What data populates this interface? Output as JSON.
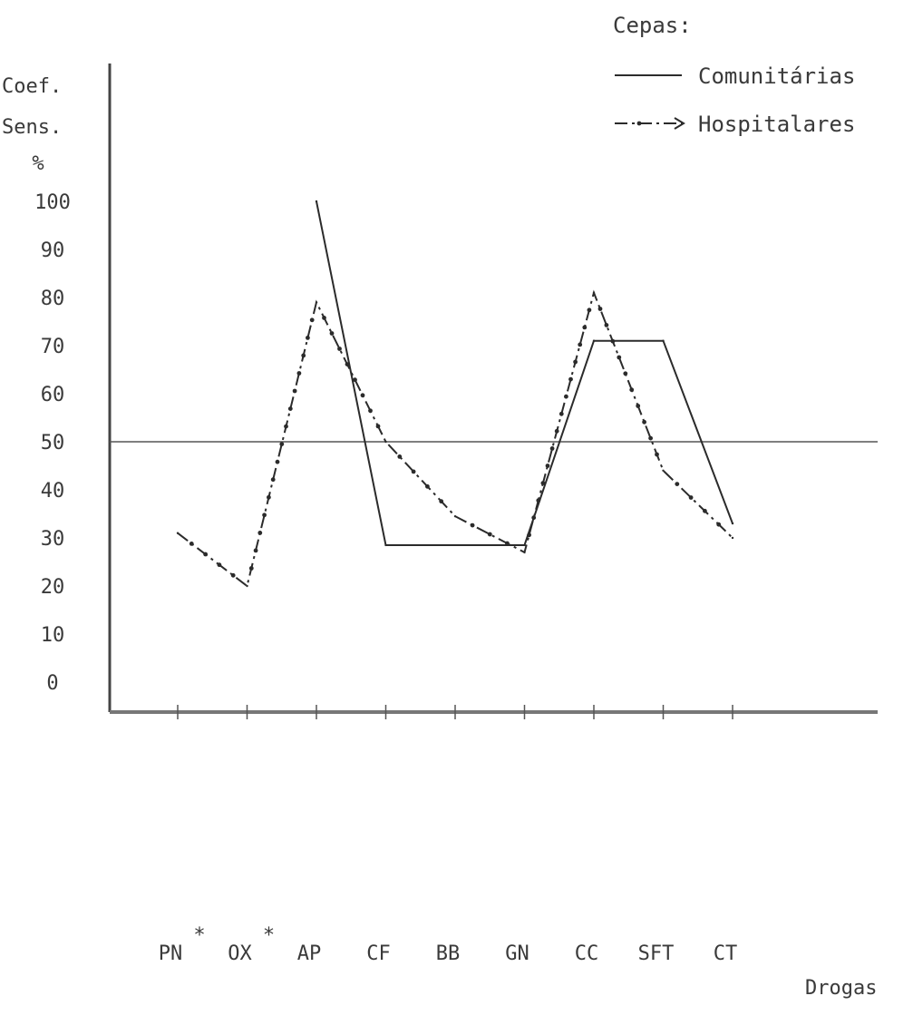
{
  "chart_data": {
    "type": "line",
    "legend_title": "Cepas:",
    "legend_position": "top-right",
    "ylabel_lines": [
      "Coef.",
      "Sens.",
      "%"
    ],
    "xlabel": "Drogas",
    "categories": [
      "PN",
      "OX",
      "AP",
      "CF",
      "BB",
      "GN",
      "CC",
      "SFT",
      "CT"
    ],
    "category_marks": [
      "*",
      "*",
      "",
      "",
      "",
      "",
      "",
      "",
      ""
    ],
    "y_ticks": [
      0,
      10,
      20,
      30,
      40,
      50,
      60,
      70,
      80,
      90,
      100
    ],
    "y_tick_labels": [
      "0",
      "10",
      "20",
      "30",
      "40",
      "50",
      "60",
      "70",
      "80",
      "90",
      "100"
    ],
    "ylim": [
      -9,
      107
    ],
    "reference_line": 50,
    "grid": false,
    "series": [
      {
        "name": "Comunitárias",
        "style": "solid",
        "points": [
          {
            "x": "AP",
            "y": 100
          },
          {
            "x": "CF",
            "y": 28.5
          },
          {
            "x": "GN",
            "y": 28.5
          },
          {
            "x": "CC",
            "y": 71
          },
          {
            "x": "SFT",
            "y": 71
          },
          {
            "x": "CT",
            "y": 33
          }
        ]
      },
      {
        "name": "Hospitalares",
        "style": "dash-dot",
        "points": [
          {
            "x": "PN",
            "y": 31
          },
          {
            "x": "OX",
            "y": 20
          },
          {
            "x": "AP",
            "y": 79
          },
          {
            "x": "CF",
            "y": 50
          },
          {
            "x": "BB",
            "y": 34.5
          },
          {
            "x": "GN",
            "y": 27
          },
          {
            "x": "CC",
            "y": 81
          },
          {
            "x": "SFT",
            "y": 44
          },
          {
            "x": "CT",
            "y": 30
          }
        ]
      }
    ],
    "colors": {
      "ink": "#2b2b2b",
      "axis": "#555555",
      "text": "#3a3a3a"
    }
  }
}
